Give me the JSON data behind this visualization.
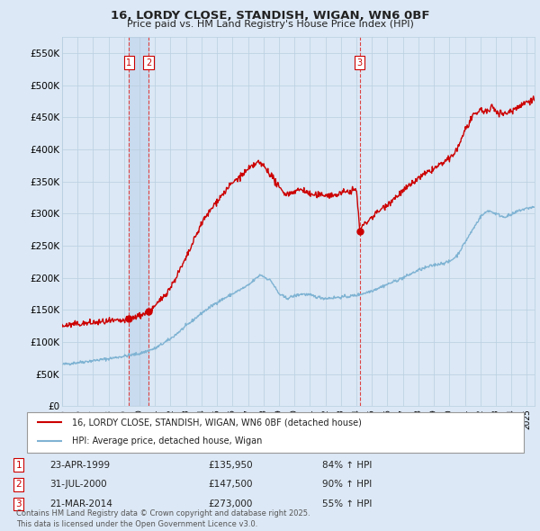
{
  "title": "16, LORDY CLOSE, STANDISH, WIGAN, WN6 0BF",
  "subtitle": "Price paid vs. HM Land Registry's House Price Index (HPI)",
  "ylim": [
    0,
    575000
  ],
  "xlim_start": 1995.0,
  "xlim_end": 2025.5,
  "yticks": [
    0,
    50000,
    100000,
    150000,
    200000,
    250000,
    300000,
    350000,
    400000,
    450000,
    500000,
    550000
  ],
  "ytick_labels": [
    "£0",
    "£50K",
    "£100K",
    "£150K",
    "£200K",
    "£250K",
    "£300K",
    "£350K",
    "£400K",
    "£450K",
    "£500K",
    "£550K"
  ],
  "background_color": "#dce8f5",
  "plot_bg_color": "#dce8f5",
  "grid_color": "#b8cfe0",
  "sale_color": "#cc0000",
  "hpi_color": "#7fb3d3",
  "vline_color": "#dd4444",
  "transactions": [
    {
      "label": "1",
      "date_year": 1999.3,
      "price": 135950
    },
    {
      "label": "2",
      "date_year": 2000.58,
      "price": 147500
    },
    {
      "label": "3",
      "date_year": 2014.22,
      "price": 273000
    }
  ],
  "legend_sale_label": "16, LORDY CLOSE, STANDISH, WIGAN, WN6 0BF (detached house)",
  "legend_hpi_label": "HPI: Average price, detached house, Wigan",
  "table_rows": [
    {
      "num": "1",
      "date": "23-APR-1999",
      "price": "£135,950",
      "hpi": "84% ↑ HPI"
    },
    {
      "num": "2",
      "date": "31-JUL-2000",
      "price": "£147,500",
      "hpi": "90% ↑ HPI"
    },
    {
      "num": "3",
      "date": "21-MAR-2014",
      "price": "£273,000",
      "hpi": "55% ↑ HPI"
    }
  ],
  "footer": "Contains HM Land Registry data © Crown copyright and database right 2025.\nThis data is licensed under the Open Government Licence v3.0."
}
